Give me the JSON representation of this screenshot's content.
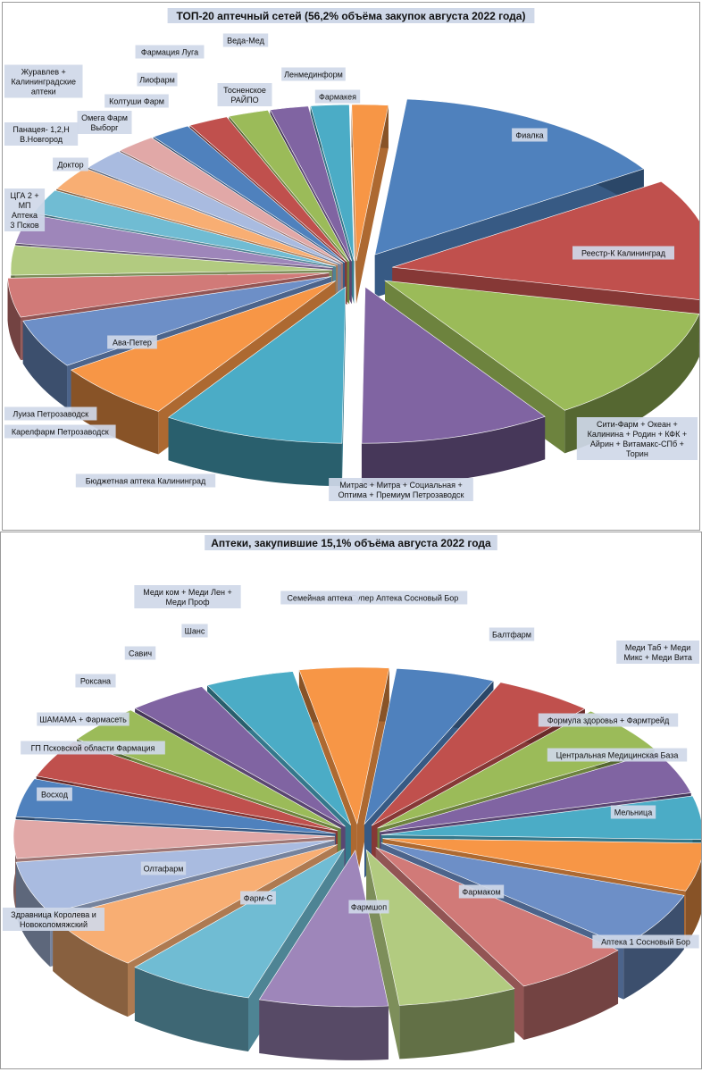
{
  "charts_meta": {
    "palette": [
      "#4F81BD",
      "#C0504D",
      "#9BBB59",
      "#8064A2",
      "#4BACC6",
      "#F79646",
      "#6D8FC7",
      "#D17A78",
      "#B2CB80",
      "#9E86BA",
      "#70BCD3",
      "#F8AE73",
      "#A9BBE0",
      "#E1A8A7"
    ],
    "label_bg": "#CFD8E8"
  },
  "chart_data": [
    {
      "type": "pie",
      "title": "ТОП-20 аптечный сетей (56,2% объёма закупок августа 2022 года)",
      "categories": [
        "Фиалка",
        "Реестр-К Калининград",
        "Сити-Фарм + Океан + Калинина + Родин + КФК + Айрин + Витамакс-СПб + Торин",
        "Митрас + Митра + Социальная + Оптима + Премиум Петрозаводск",
        "Бюджетная аптека Калининград",
        "Ава-Петер",
        "Карелфарм Петрозаводск",
        "Луиза Петрозаводск",
        "ЦГА 2 + МП Аптека 3 Псков",
        "Доктор",
        "Панацея- 1,2,Н В.Новгород",
        "Журавлев + Калининградские аптеки",
        "Омега Фарм Выборг",
        "Колтуши Фарм",
        "Лиофарм",
        "Фармация Луга",
        "Тосненское РАЙПО",
        "Веда-Мед",
        "Ленмединформ",
        "Фармакея"
      ],
      "values": [
        14.0,
        12.5,
        12.0,
        9.5,
        9.0,
        6.0,
        5.0,
        4.0,
        3.0,
        3.0,
        2.5,
        2.5,
        2.2,
        2.0,
        2.0,
        2.0,
        2.0,
        1.9,
        1.9,
        1.8
      ]
    },
    {
      "type": "pie",
      "title": "Аптеки, закупившие 15,1% объёма августа 2022 года",
      "categories": [
        "Супер Аптека Сосновый Бор",
        "Балтфарм",
        "Меди Таб + Меди Микс + Меди Вита",
        "Формула здоровья + Фармтрейд",
        "Центральная Медицинская База",
        "Мельница",
        "Аптека 1 Сосновый Бор",
        "Фармаком",
        "Фармшоп",
        "Фарм-С",
        "Олтафарм",
        "Здравница Королева и Новоколомяжский",
        "Восход",
        "ГП Псковской области Фармация",
        "ШАМАМА + Фармасеть",
        "Роксана",
        "Савич",
        "Шанс",
        "Меди ком + Меди Лен + Меди Проф",
        "Семейная аптека"
      ],
      "values": [
        5.0,
        5.0,
        5.0,
        4.5,
        4.5,
        5.0,
        6.0,
        6.0,
        6.0,
        6.5,
        6.5,
        6.0,
        5.5,
        4.0,
        4.0,
        4.0,
        4.0,
        4.0,
        4.5,
        4.5
      ]
    }
  ]
}
